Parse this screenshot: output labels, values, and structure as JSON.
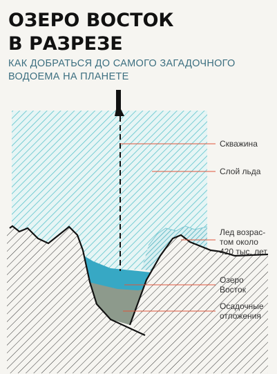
{
  "header": {
    "title": [
      "ОЗЕРО ВОСТОК",
      "В РАЗРЕЗЕ"
    ],
    "subtitle": [
      "КАК ДОБРАТЬСЯ ДО САМОГО ЗАГАДОЧНОГО",
      "ВОДОЕМА НА ПЛАНЕТЕ"
    ]
  },
  "labels": [
    {
      "lines": [
        "Скважина"
      ]
    },
    {
      "lines": [
        "Слой льда"
      ]
    },
    {
      "lines": [
        "Лед возрас-",
        "том около",
        "420 тыс. лет"
      ]
    },
    {
      "lines": [
        "Озеро",
        "Восток"
      ]
    },
    {
      "lines": [
        "Осадочные",
        "отложения"
      ]
    }
  ]
}
